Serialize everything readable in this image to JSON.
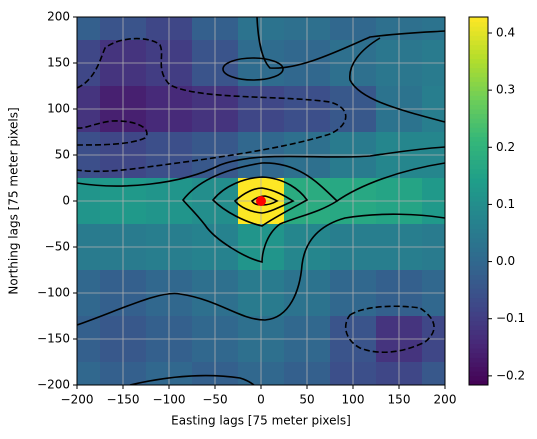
{
  "chart_data": {
    "type": "heatmap",
    "xlabel": "Easting lags [75 meter pixels]",
    "ylabel": "Northing lags [75 meter pixels]",
    "x": [
      -200,
      -150,
      -100,
      -50,
      0,
      50,
      100,
      150,
      200
    ],
    "y": [
      200,
      150,
      100,
      50,
      0,
      -50,
      -100,
      -150,
      -200
    ],
    "values": [
      [
        -0.02,
        -0.05,
        -0.08,
        -0.02,
        0.03,
        0.02,
        0.0,
        0.02,
        0.03
      ],
      [
        -0.08,
        -0.12,
        -0.1,
        -0.05,
        0.01,
        0.0,
        0.02,
        0.04,
        0.05
      ],
      [
        -0.12,
        -0.16,
        -0.14,
        -0.12,
        -0.08,
        -0.06,
        -0.04,
        0.03,
        0.06
      ],
      [
        -0.06,
        -0.08,
        -0.06,
        -0.04,
        0.0,
        0.02,
        0.05,
        0.08,
        0.08
      ],
      [
        0.12,
        0.13,
        0.12,
        0.1,
        0.43,
        0.18,
        0.17,
        0.16,
        0.13
      ],
      [
        0.05,
        0.05,
        0.06,
        0.07,
        0.12,
        0.08,
        0.06,
        0.06,
        0.05
      ],
      [
        0.0,
        -0.02,
        0.0,
        0.02,
        0.05,
        0.03,
        0.0,
        -0.02,
        0.0
      ],
      [
        -0.02,
        -0.04,
        -0.02,
        0.0,
        0.02,
        0.0,
        -0.05,
        -0.12,
        -0.08
      ],
      [
        0.0,
        -0.02,
        0.0,
        -0.02,
        0.0,
        -0.02,
        -0.06,
        -0.08,
        -0.04
      ]
    ],
    "colormap": "viridis",
    "clim": [
      -0.216,
      0.428
    ],
    "cticks": [
      {
        "value": -0.2,
        "label": "−0.2"
      },
      {
        "value": -0.1,
        "label": "−0.1"
      },
      {
        "value": 0.0,
        "label": "0.0"
      },
      0.1,
      0.2,
      0.3,
      0.4
    ],
    "xlim": [
      -200,
      200
    ],
    "ylim": [
      -200,
      200
    ],
    "xticks": [
      {
        "value": -200,
        "label": "−200"
      },
      {
        "value": -150,
        "label": "−150"
      },
      {
        "value": -100,
        "label": "−100"
      },
      {
        "value": -50,
        "label": "−50"
      },
      0,
      50,
      100,
      150,
      200
    ],
    "yticks": [
      {
        "value": -200,
        "label": "−200"
      },
      {
        "value": -150,
        "label": "−150"
      },
      {
        "value": -100,
        "label": "−100"
      },
      {
        "value": -50,
        "label": "−50"
      },
      0,
      50,
      100,
      150,
      200
    ],
    "grid": true,
    "marker": {
      "x": 0,
      "y": 0,
      "color": "#ff0000"
    }
  }
}
